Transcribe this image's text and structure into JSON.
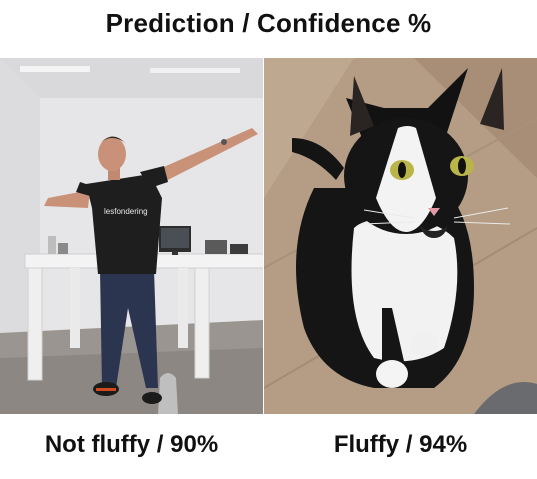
{
  "header": {
    "title": "Prediction / Confidence %"
  },
  "panels": [
    {
      "image_label": "person-dabbing-photo",
      "shirt_text": "lesfondering",
      "caption": "Not fluffy / 90%"
    },
    {
      "image_label": "black-white-cat-photo",
      "caption": "Fluffy / 94%"
    }
  ]
}
